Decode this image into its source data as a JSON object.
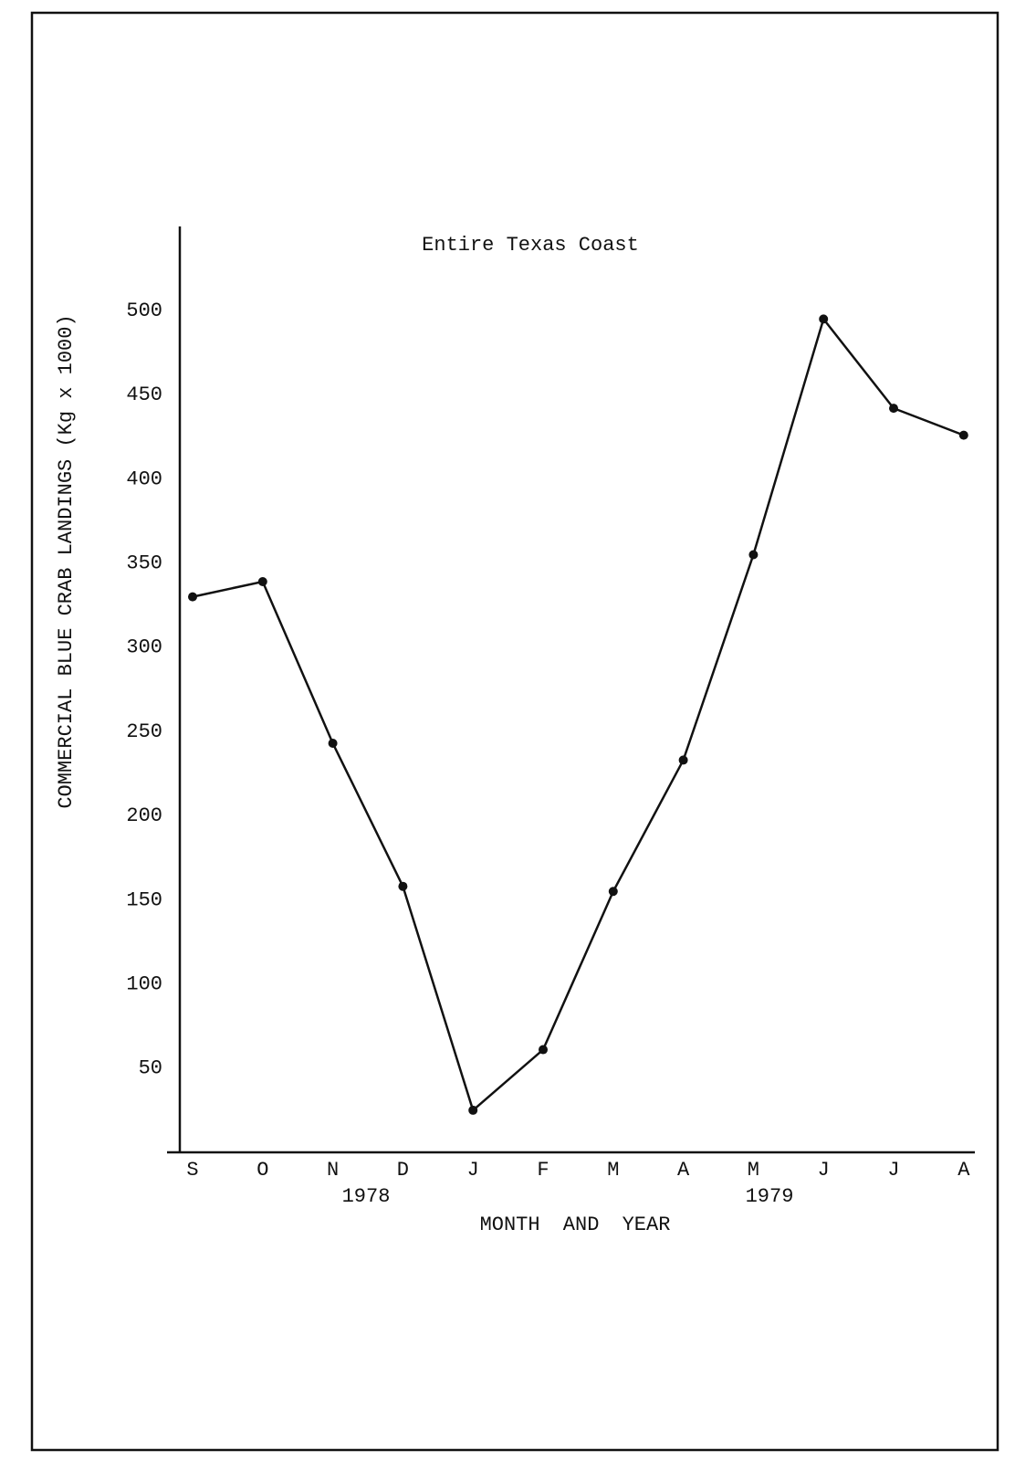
{
  "chart_data": {
    "type": "line",
    "title": "Entire Texas Coast",
    "y_label": "COMMERCIAL BLUE CRAB LANDINGS (Kg x 1000)",
    "x_label": "MONTH AND YEAR",
    "year_labels": [
      "1978",
      "1979"
    ],
    "categories": [
      "S",
      "O",
      "N",
      "D",
      "J",
      "F",
      "M",
      "A",
      "M",
      "J",
      "J",
      "A"
    ],
    "series": [
      {
        "name": "Entire Texas Coast",
        "color": "#111111",
        "values": [
          330,
          339,
          243,
          158,
          25,
          61,
          155,
          233,
          355,
          495,
          442,
          426
        ]
      }
    ],
    "ylim": [
      0,
      550
    ],
    "yticks": [
      50,
      100,
      150,
      200,
      250,
      300,
      350,
      400,
      450,
      500
    ],
    "grid": false
  }
}
